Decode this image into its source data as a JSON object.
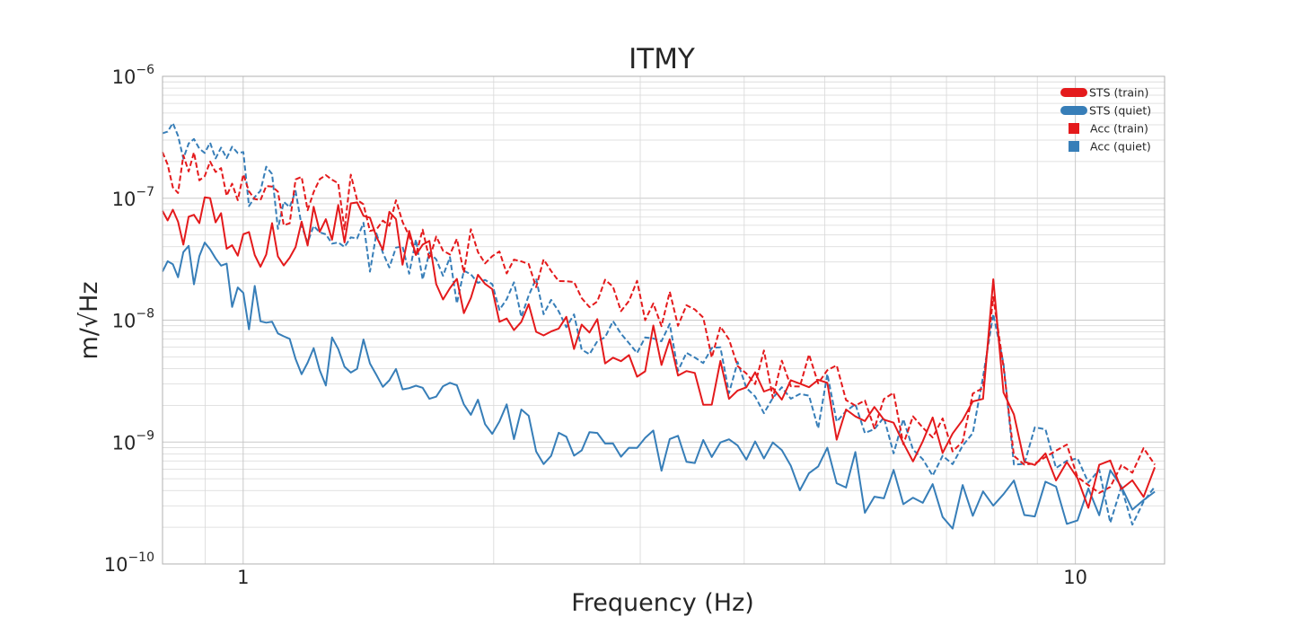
{
  "chart_data": {
    "type": "line",
    "title": "ITMY",
    "xlabel": "Frequency (Hz)",
    "ylabel": "m/√Hz",
    "xscale": "log",
    "yscale": "log",
    "xlim": [
      0.8,
      12.8
    ],
    "ylim": [
      1e-10,
      1e-06
    ],
    "grid": true,
    "legend_position": "top-right",
    "x_ticks": [
      {
        "value": 1,
        "label": "1"
      },
      {
        "value": 10,
        "label": "10"
      }
    ],
    "y_ticks": [
      {
        "value": 1e-10,
        "base": "10",
        "exp": "−10"
      },
      {
        "value": 1e-09,
        "base": "10",
        "exp": "−9"
      },
      {
        "value": 1e-08,
        "base": "10",
        "exp": "−8"
      },
      {
        "value": 1e-07,
        "base": "10",
        "exp": "−7"
      },
      {
        "value": 1e-06,
        "base": "10",
        "exp": "−6"
      }
    ],
    "colors": {
      "train": "#e41a1c",
      "quiet": "#377eb8"
    },
    "legend": [
      {
        "label": "STS (train)",
        "color": "#e41a1c",
        "marker": "line"
      },
      {
        "label": "STS (quiet)",
        "color": "#377eb8",
        "marker": "line"
      },
      {
        "label": "Acc (train)",
        "color": "#e41a1c",
        "marker": "square"
      },
      {
        "label": "Acc (quiet)",
        "color": "#377eb8",
        "marker": "square"
      }
    ],
    "series": [
      {
        "name": "STS (train)",
        "color": "#e41a1c",
        "style": "solid",
        "x": [
          0.8,
          0.85,
          0.9,
          1.0,
          1.1,
          1.2,
          1.35,
          1.5,
          1.7,
          2.0,
          2.3,
          2.6,
          3.0,
          3.5,
          4.0,
          4.5,
          5.0,
          5.5,
          6.0,
          6.5,
          7.0,
          7.5,
          7.8,
          8.0,
          8.2,
          8.5,
          9.0,
          10.0,
          11.0,
          12.0,
          12.8
        ],
        "y": [
          6e-08,
          7e-08,
          7.5e-08,
          4e-08,
          5e-08,
          6e-08,
          7e-08,
          5e-08,
          2.5e-08,
          1.8e-08,
          1e-08,
          8e-09,
          6e-09,
          4e-09,
          3e-09,
          2.5e-09,
          1.8e-09,
          1.4e-09,
          1.2e-09,
          1e-09,
          9e-10,
          1.3e-09,
          4e-09,
          2.3e-08,
          3e-09,
          1e-09,
          7e-10,
          6e-10,
          5e-10,
          5.5e-10,
          5e-10
        ]
      },
      {
        "name": "STS (quiet)",
        "color": "#377eb8",
        "style": "solid",
        "x": [
          0.8,
          0.85,
          0.9,
          0.95,
          1.0,
          1.1,
          1.2,
          1.4,
          1.6,
          1.8,
          2.0,
          2.3,
          2.6,
          3.0,
          3.5,
          4.0,
          4.5,
          5.0,
          6.0,
          7.0,
          8.0,
          9.0,
          10.0,
          11.0,
          12.0,
          12.8
        ],
        "y": [
          2e-08,
          3.5e-08,
          3e-08,
          2e-08,
          1.3e-08,
          9e-09,
          5e-09,
          4e-09,
          3e-09,
          2.2e-09,
          1.8e-09,
          1.3e-09,
          1.1e-09,
          9e-10,
          7.5e-10,
          7e-10,
          6.5e-10,
          6e-10,
          4.5e-10,
          3.8e-10,
          3.5e-10,
          3.6e-10,
          3.5e-10,
          3.6e-10,
          3.8e-10,
          3.5e-10
        ]
      },
      {
        "name": "Acc (train)",
        "color": "#e41a1c",
        "style": "dashed",
        "x": [
          0.8,
          0.85,
          0.9,
          1.0,
          1.1,
          1.2,
          1.35,
          1.5,
          1.7,
          2.0,
          2.3,
          2.6,
          3.0,
          3.5,
          4.0,
          4.5,
          5.0,
          5.5,
          6.0,
          6.5,
          7.0,
          7.5,
          7.8,
          8.0,
          8.2,
          8.5,
          9.0,
          10.0,
          11.0,
          12.0,
          12.8
        ],
        "y": [
          2e-07,
          1.8e-07,
          1.5e-07,
          1.2e-07,
          1e-07,
          1.1e-07,
          1e-07,
          7e-08,
          4.5e-08,
          3e-08,
          2.3e-08,
          1.6e-08,
          1.2e-08,
          8e-09,
          5e-09,
          4e-09,
          3e-09,
          2.3e-09,
          1.8e-09,
          1.5e-09,
          1.3e-09,
          1.8e-09,
          5e-09,
          2.2e-08,
          3e-09,
          1.2e-09,
          8e-10,
          7e-10,
          6e-10,
          5e-10,
          4e-10
        ]
      },
      {
        "name": "Acc (quiet)",
        "color": "#377eb8",
        "style": "dashed",
        "x": [
          0.8,
          0.85,
          0.9,
          1.0,
          1.1,
          1.2,
          1.35,
          1.5,
          1.7,
          2.0,
          2.3,
          2.6,
          3.0,
          3.5,
          4.0,
          4.5,
          5.0,
          5.5,
          6.0,
          6.5,
          7.0,
          7.5,
          7.8,
          8.0,
          8.2,
          8.5,
          9.0,
          10.0,
          11.0,
          12.0,
          12.8
        ],
        "y": [
          3e-07,
          2.5e-07,
          2.2e-07,
          1.8e-07,
          1e-07,
          7e-08,
          4.5e-08,
          3.5e-08,
          2.5e-08,
          1.8e-08,
          1.2e-08,
          9e-09,
          7e-09,
          5e-09,
          3.5e-09,
          2.8e-09,
          2.1e-09,
          1.7e-09,
          1.4e-09,
          1.1e-09,
          9e-10,
          1.2e-09,
          4e-09,
          1.5e-08,
          2.5e-09,
          1e-09,
          1.5e-09,
          5e-10,
          4e-10,
          3.5e-10,
          3e-10
        ]
      }
    ]
  }
}
